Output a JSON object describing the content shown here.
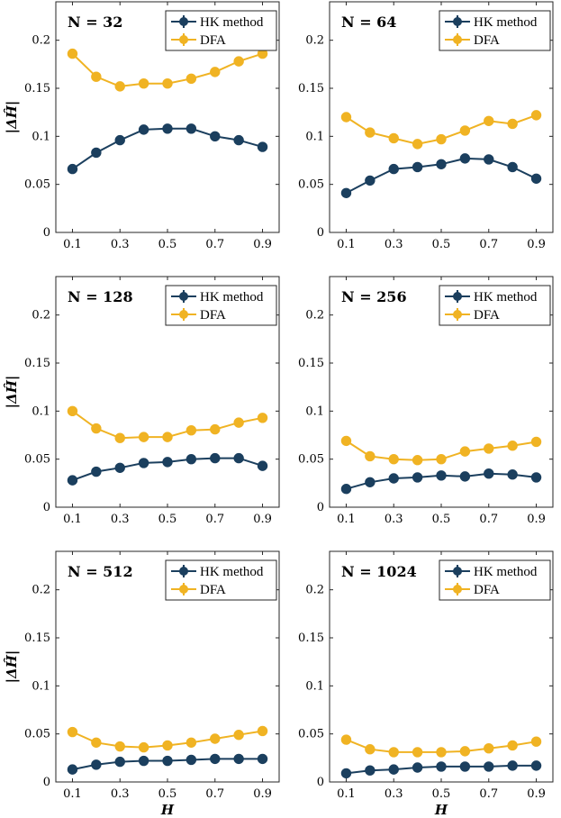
{
  "colors": {
    "hk": "#1b3f5e",
    "dfa": "#f0b323"
  },
  "xlabel": "H",
  "ylabel": "|ΔĤ|",
  "chart_data": [
    {
      "type": "line",
      "title": "N = 32",
      "x": [
        0.1,
        0.2,
        0.3,
        0.4,
        0.5,
        0.6,
        0.7,
        0.8,
        0.9
      ],
      "xticks": [
        "0.1",
        "0.3",
        "0.5",
        "0.7",
        "0.9"
      ],
      "yticks": [
        "0",
        "0.05",
        "0.1",
        "0.15",
        "0.2"
      ],
      "xlim": [
        0.03,
        0.97
      ],
      "ylim": [
        0,
        0.24
      ],
      "legend": "top-right",
      "grid": false,
      "series": [
        {
          "name": "HK method",
          "values": [
            0.066,
            0.083,
            0.096,
            0.107,
            0.108,
            0.108,
            0.1,
            0.096,
            0.089
          ]
        },
        {
          "name": "DFA",
          "values": [
            0.186,
            0.162,
            0.152,
            0.155,
            0.155,
            0.16,
            0.167,
            0.178,
            0.186
          ]
        }
      ]
    },
    {
      "type": "line",
      "title": "N = 64",
      "x": [
        0.1,
        0.2,
        0.3,
        0.4,
        0.5,
        0.6,
        0.7,
        0.8,
        0.9
      ],
      "xticks": [
        "0.1",
        "0.3",
        "0.5",
        "0.7",
        "0.9"
      ],
      "yticks": [
        "0",
        "0.05",
        "0.1",
        "0.15",
        "0.2"
      ],
      "xlim": [
        0.03,
        0.97
      ],
      "ylim": [
        0,
        0.24
      ],
      "legend": "top-right",
      "grid": false,
      "series": [
        {
          "name": "HK method",
          "values": [
            0.041,
            0.054,
            0.066,
            0.068,
            0.071,
            0.077,
            0.076,
            0.068,
            0.056
          ]
        },
        {
          "name": "DFA",
          "values": [
            0.12,
            0.104,
            0.098,
            0.092,
            0.097,
            0.106,
            0.116,
            0.113,
            0.122
          ]
        }
      ]
    },
    {
      "type": "line",
      "title": "N = 128",
      "x": [
        0.1,
        0.2,
        0.3,
        0.4,
        0.5,
        0.6,
        0.7,
        0.8,
        0.9
      ],
      "xticks": [
        "0.1",
        "0.3",
        "0.5",
        "0.7",
        "0.9"
      ],
      "yticks": [
        "0",
        "0.05",
        "0.1",
        "0.15",
        "0.2"
      ],
      "xlim": [
        0.03,
        0.97
      ],
      "ylim": [
        0,
        0.24
      ],
      "legend": "top-right",
      "grid": false,
      "series": [
        {
          "name": "HK method",
          "values": [
            0.028,
            0.037,
            0.041,
            0.046,
            0.047,
            0.05,
            0.051,
            0.051,
            0.043
          ]
        },
        {
          "name": "DFA",
          "values": [
            0.1,
            0.082,
            0.072,
            0.073,
            0.073,
            0.08,
            0.081,
            0.088,
            0.093
          ]
        }
      ]
    },
    {
      "type": "line",
      "title": "N = 256",
      "x": [
        0.1,
        0.2,
        0.3,
        0.4,
        0.5,
        0.6,
        0.7,
        0.8,
        0.9
      ],
      "xticks": [
        "0.1",
        "0.3",
        "0.5",
        "0.7",
        "0.9"
      ],
      "yticks": [
        "0",
        "0.05",
        "0.1",
        "0.15",
        "0.2"
      ],
      "xlim": [
        0.03,
        0.97
      ],
      "ylim": [
        0,
        0.24
      ],
      "legend": "top-right",
      "grid": false,
      "series": [
        {
          "name": "HK method",
          "values": [
            0.019,
            0.026,
            0.03,
            0.031,
            0.033,
            0.032,
            0.035,
            0.034,
            0.031
          ]
        },
        {
          "name": "DFA",
          "values": [
            0.069,
            0.053,
            0.05,
            0.049,
            0.05,
            0.058,
            0.061,
            0.064,
            0.068
          ]
        }
      ]
    },
    {
      "type": "line",
      "title": "N = 512",
      "x": [
        0.1,
        0.2,
        0.3,
        0.4,
        0.5,
        0.6,
        0.7,
        0.8,
        0.9
      ],
      "xticks": [
        "0.1",
        "0.3",
        "0.5",
        "0.7",
        "0.9"
      ],
      "yticks": [
        "0",
        "0.05",
        "0.1",
        "0.15",
        "0.2"
      ],
      "xlim": [
        0.03,
        0.97
      ],
      "ylim": [
        0,
        0.24
      ],
      "legend": "top-right",
      "grid": false,
      "series": [
        {
          "name": "HK method",
          "values": [
            0.013,
            0.018,
            0.021,
            0.022,
            0.022,
            0.023,
            0.024,
            0.024,
            0.024
          ]
        },
        {
          "name": "DFA",
          "values": [
            0.052,
            0.041,
            0.037,
            0.036,
            0.038,
            0.041,
            0.045,
            0.049,
            0.053
          ]
        }
      ]
    },
    {
      "type": "line",
      "title": "N = 1024",
      "x": [
        0.1,
        0.2,
        0.3,
        0.4,
        0.5,
        0.6,
        0.7,
        0.8,
        0.9
      ],
      "xticks": [
        "0.1",
        "0.3",
        "0.5",
        "0.7",
        "0.9"
      ],
      "yticks": [
        "0",
        "0.05",
        "0.1",
        "0.15",
        "0.2"
      ],
      "xlim": [
        0.03,
        0.97
      ],
      "ylim": [
        0,
        0.24
      ],
      "legend": "top-right",
      "grid": false,
      "series": [
        {
          "name": "HK method",
          "values": [
            0.009,
            0.012,
            0.013,
            0.015,
            0.016,
            0.016,
            0.016,
            0.017,
            0.017
          ]
        },
        {
          "name": "DFA",
          "values": [
            0.044,
            0.034,
            0.031,
            0.031,
            0.031,
            0.032,
            0.035,
            0.038,
            0.042
          ]
        }
      ]
    }
  ]
}
